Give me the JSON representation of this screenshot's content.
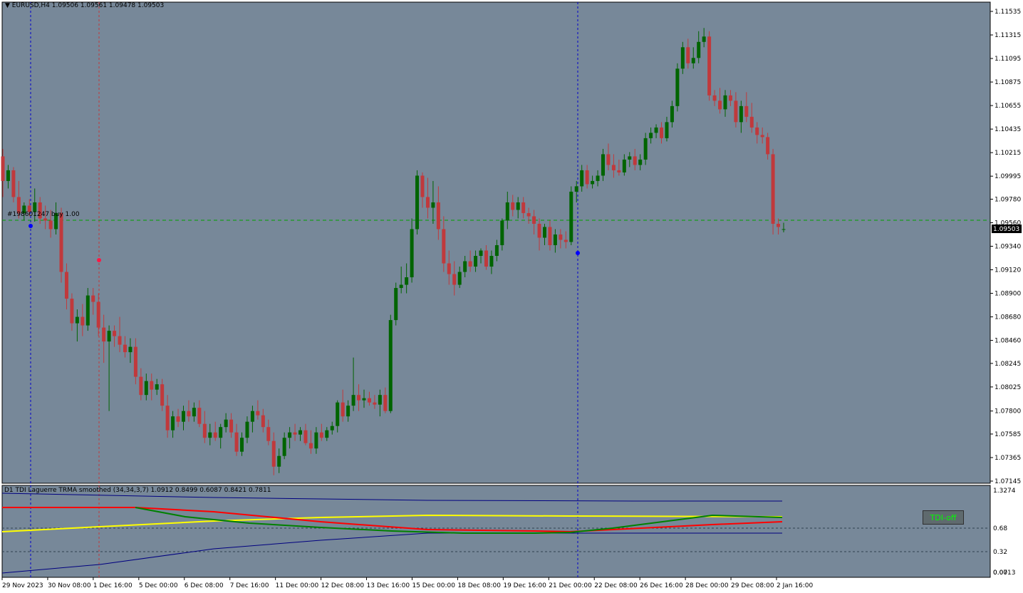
{
  "symbol_info": {
    "arrow": "▼",
    "text": "EURUSD,H4  1.09506 1.09561 1.09478 1.09503"
  },
  "order": {
    "label": "#198601247 buy 1.00"
  },
  "indicator": {
    "label": "D1 TDI Laguerre TRMA smoothed (34,34,3,7) 1.0912 0.8499 0.6087 0.8421 0.7811",
    "button_label": "TDI-off"
  },
  "price_axis": {
    "ticks": [
      "1.11535",
      "1.11315",
      "1.11095",
      "1.10875",
      "1.10655",
      "1.10435",
      "1.10215",
      "1.09995",
      "1.09780",
      "1.09560",
      "1.09340",
      "1.09120",
      "1.08900",
      "1.08680",
      "1.08460",
      "1.08245",
      "1.08025",
      "1.07800",
      "1.07585",
      "1.07365",
      "1.07145"
    ],
    "current_price": "1.09503"
  },
  "indicator_axis": {
    "ticks": [
      "1.3274",
      "0.68",
      "0.32",
      "0.0713",
      "0.00"
    ]
  },
  "time_axis": {
    "ticks": [
      "29 Nov 2023",
      "30 Nov 08:00",
      "1 Dec 16:00",
      "5 Dec 00:00",
      "6 Dec 08:00",
      "7 Dec 16:00",
      "11 Dec 00:00",
      "12 Dec 08:00",
      "13 Dec 16:00",
      "15 Dec 00:00",
      "18 Dec 08:00",
      "19 Dec 16:00",
      "21 Dec 00:00",
      "22 Dec 08:00",
      "26 Dec 16:00",
      "28 Dec 00:00",
      "29 Dec 08:00",
      "2 Jan 16:00"
    ]
  },
  "colors": {
    "background": "#778899",
    "bull": "#006400",
    "bear": "#c0393c",
    "indicator_yellow": "#ffff00",
    "indicator_red": "#ff0000",
    "indicator_green": "#008000",
    "indicator_blue": "#000080"
  },
  "chart_data": {
    "type": "candlestick",
    "timeframe": "H4",
    "ylim": [
      1.07145,
      1.11535
    ],
    "candles": [
      [
        1.1018,
        1.1025,
        1.098,
        1.0995
      ],
      [
        1.0995,
        1.101,
        1.0988,
        1.1005
      ],
      [
        1.1005,
        1.1008,
        1.0975,
        1.098
      ],
      [
        1.098,
        1.0995,
        1.096,
        1.0965
      ],
      [
        1.0965,
        1.0975,
        1.0958,
        1.0972
      ],
      [
        1.0972,
        1.0978,
        1.0962,
        1.0966
      ],
      [
        1.0966,
        1.0988,
        1.0957,
        1.0975
      ],
      [
        1.0975,
        1.098,
        1.0955,
        1.096
      ],
      [
        1.096,
        1.0972,
        1.095,
        1.0958
      ],
      [
        1.0958,
        1.0968,
        1.0942,
        1.095
      ],
      [
        1.095,
        1.0975,
        1.0945,
        1.0965
      ],
      [
        1.0965,
        1.097,
        1.09,
        1.091
      ],
      [
        1.091,
        1.0918,
        1.0875,
        1.0885
      ],
      [
        1.0885,
        1.089,
        1.0855,
        1.0862
      ],
      [
        1.0862,
        1.0875,
        1.0845,
        1.0868
      ],
      [
        1.0868,
        1.088,
        1.085,
        1.086
      ],
      [
        1.086,
        1.0895,
        1.0855,
        1.0888
      ],
      [
        1.0888,
        1.0895,
        1.087,
        1.0882
      ],
      [
        1.0882,
        1.089,
        1.085,
        1.0858
      ],
      [
        1.0858,
        1.087,
        1.0825,
        1.0845
      ],
      [
        1.0845,
        1.086,
        1.078,
        1.0855
      ],
      [
        1.0855,
        1.086,
        1.084,
        1.085
      ],
      [
        1.085,
        1.0868,
        1.0835,
        1.0842
      ],
      [
        1.0842,
        1.085,
        1.083,
        1.0835
      ],
      [
        1.0835,
        1.0848,
        1.0825,
        1.084
      ],
      [
        1.084,
        1.0848,
        1.0805,
        1.0812
      ],
      [
        1.0812,
        1.082,
        1.079,
        1.0795
      ],
      [
        1.0795,
        1.0815,
        1.079,
        1.0808
      ],
      [
        1.0808,
        1.0815,
        1.079,
        1.08
      ],
      [
        1.08,
        1.081,
        1.0795,
        1.0805
      ],
      [
        1.0805,
        1.081,
        1.078,
        1.0785
      ],
      [
        1.0785,
        1.0795,
        1.0755,
        1.0762
      ],
      [
        1.0762,
        1.078,
        1.0755,
        1.0775
      ],
      [
        1.0775,
        1.0782,
        1.0765,
        1.077
      ],
      [
        1.077,
        1.0785,
        1.0762,
        1.078
      ],
      [
        1.078,
        1.079,
        1.077,
        1.0775
      ],
      [
        1.0775,
        1.0788,
        1.077,
        1.0783
      ],
      [
        1.0783,
        1.079,
        1.0765,
        1.0768
      ],
      [
        1.0768,
        1.078,
        1.075,
        1.0755
      ],
      [
        1.0755,
        1.0768,
        1.0748,
        1.076
      ],
      [
        1.076,
        1.077,
        1.0752,
        1.0755
      ],
      [
        1.0755,
        1.0768,
        1.0745,
        1.0765
      ],
      [
        1.0765,
        1.0778,
        1.076,
        1.0772
      ],
      [
        1.0772,
        1.0778,
        1.0755,
        1.076
      ],
      [
        1.076,
        1.0768,
        1.0738,
        1.0742
      ],
      [
        1.0742,
        1.076,
        1.0738,
        1.0755
      ],
      [
        1.0755,
        1.0775,
        1.075,
        1.077
      ],
      [
        1.077,
        1.0785,
        1.076,
        1.078
      ],
      [
        1.078,
        1.079,
        1.0772,
        1.0776
      ],
      [
        1.0776,
        1.0782,
        1.076,
        1.0765
      ],
      [
        1.0765,
        1.0772,
        1.0748,
        1.0752
      ],
      [
        1.0752,
        1.076,
        1.072,
        1.0728
      ],
      [
        1.0728,
        1.0745,
        1.0722,
        1.0738
      ],
      [
        1.0738,
        1.076,
        1.0735,
        1.0755
      ],
      [
        1.0755,
        1.0765,
        1.0745,
        1.076
      ],
      [
        1.076,
        1.0768,
        1.0752,
        1.0758
      ],
      [
        1.0758,
        1.0765,
        1.0752,
        1.0762
      ],
      [
        1.0762,
        1.0768,
        1.0748,
        1.075
      ],
      [
        1.075,
        1.0762,
        1.074,
        1.0745
      ],
      [
        1.0745,
        1.0765,
        1.074,
        1.076
      ],
      [
        1.076,
        1.0768,
        1.0752,
        1.0755
      ],
      [
        1.0755,
        1.0765,
        1.0752,
        1.0762
      ],
      [
        1.0762,
        1.077,
        1.0758,
        1.0766
      ],
      [
        1.0766,
        1.079,
        1.076,
        1.0788
      ],
      [
        1.0788,
        1.08,
        1.077,
        1.0775
      ],
      [
        1.0775,
        1.079,
        1.077,
        1.0785
      ],
      [
        1.0785,
        1.083,
        1.078,
        1.0795
      ],
      [
        1.0795,
        1.0805,
        1.078,
        1.079
      ],
      [
        1.079,
        1.08,
        1.0783,
        1.0792
      ],
      [
        1.0792,
        1.0798,
        1.0785,
        1.0788
      ],
      [
        1.0788,
        1.0795,
        1.0782,
        1.0786
      ],
      [
        1.0786,
        1.08,
        1.0775,
        1.0795
      ],
      [
        1.0795,
        1.0802,
        1.0778,
        1.078
      ],
      [
        1.078,
        1.087,
        1.0778,
        1.0865
      ],
      [
        1.0865,
        1.09,
        1.086,
        1.0895
      ],
      [
        1.0895,
        1.0915,
        1.089,
        1.0898
      ],
      [
        1.0898,
        1.0918,
        1.089,
        1.0905
      ],
      [
        1.0905,
        1.096,
        1.09,
        1.095
      ],
      [
        1.095,
        1.1005,
        1.0945,
        1.1
      ],
      [
        1.1,
        1.1003,
        1.097,
        1.098
      ],
      [
        1.098,
        1.0998,
        1.096,
        1.097
      ],
      [
        1.097,
        1.0995,
        1.0955,
        1.0975
      ],
      [
        1.0975,
        1.099,
        1.094,
        1.095
      ],
      [
        1.095,
        1.0962,
        1.091,
        1.0918
      ],
      [
        1.0918,
        1.093,
        1.0898,
        1.0908
      ],
      [
        1.0908,
        1.092,
        1.0888,
        1.0898
      ],
      [
        1.0898,
        1.0915,
        1.0895,
        1.091
      ],
      [
        1.091,
        1.0925,
        1.0905,
        1.092
      ],
      [
        1.092,
        1.093,
        1.091,
        1.0915
      ],
      [
        1.0915,
        1.093,
        1.091,
        1.0925
      ],
      [
        1.0925,
        1.0932,
        1.0918,
        1.093
      ],
      [
        1.093,
        1.0935,
        1.0912,
        1.0915
      ],
      [
        1.0915,
        1.093,
        1.0908,
        1.0925
      ],
      [
        1.0925,
        1.094,
        1.092,
        1.0935
      ],
      [
        1.0935,
        1.096,
        1.093,
        1.0958
      ],
      [
        1.0958,
        1.0985,
        1.095,
        1.0975
      ],
      [
        1.0975,
        1.0982,
        1.0962,
        1.0968
      ],
      [
        1.0968,
        1.098,
        1.096,
        1.0975
      ],
      [
        1.0975,
        1.098,
        1.096,
        1.0965
      ],
      [
        1.0965,
        1.097,
        1.0955,
        1.0962
      ],
      [
        1.0962,
        1.0968,
        1.0945,
        1.0955
      ],
      [
        1.0955,
        1.096,
        1.093,
        1.0942
      ],
      [
        1.0942,
        1.0955,
        1.0935,
        1.0952
      ],
      [
        1.0952,
        1.0958,
        1.093,
        1.0935
      ],
      [
        1.0935,
        1.095,
        1.0928,
        1.0945
      ],
      [
        1.0945,
        1.095,
        1.0932,
        1.094
      ],
      [
        1.094,
        1.0948,
        1.0932,
        1.0938
      ],
      [
        1.0938,
        1.099,
        1.0935,
        1.0985
      ],
      [
        1.0985,
        1.0995,
        1.0975,
        1.099
      ],
      [
        1.099,
        1.101,
        1.0985,
        1.1005
      ],
      [
        1.1005,
        1.101,
        1.0988,
        1.0992
      ],
      [
        1.0992,
        1.1,
        1.0988,
        1.0995
      ],
      [
        1.0995,
        1.1005,
        1.099,
        1.1
      ],
      [
        1.1,
        1.1025,
        1.0995,
        1.102
      ],
      [
        1.102,
        1.103,
        1.1005,
        1.101
      ],
      [
        1.101,
        1.102,
        1.0998,
        1.1005
      ],
      [
        1.1005,
        1.1015,
        1.1,
        1.1003
      ],
      [
        1.1003,
        1.102,
        1.1,
        1.1015
      ],
      [
        1.1015,
        1.1022,
        1.1008,
        1.1018
      ],
      [
        1.1018,
        1.1025,
        1.1005,
        1.101
      ],
      [
        1.101,
        1.102,
        1.1005,
        1.1015
      ],
      [
        1.1015,
        1.104,
        1.101,
        1.1035
      ],
      [
        1.1035,
        1.1045,
        1.103,
        1.104
      ],
      [
        1.104,
        1.1048,
        1.1035,
        1.1045
      ],
      [
        1.1045,
        1.105,
        1.103,
        1.1035
      ],
      [
        1.1035,
        1.1055,
        1.1032,
        1.105
      ],
      [
        1.105,
        1.107,
        1.1045,
        1.1065
      ],
      [
        1.1065,
        1.1105,
        1.106,
        1.11
      ],
      [
        1.11,
        1.1125,
        1.1095,
        1.112
      ],
      [
        1.112,
        1.1128,
        1.11,
        1.1105
      ],
      [
        1.1105,
        1.112,
        1.11,
        1.111
      ],
      [
        1.111,
        1.1135,
        1.1105,
        1.1125
      ],
      [
        1.1125,
        1.1138,
        1.112,
        1.113
      ],
      [
        1.113,
        1.1135,
        1.107,
        1.1075
      ],
      [
        1.1075,
        1.108,
        1.1065,
        1.107
      ],
      [
        1.107,
        1.1082,
        1.1058,
        1.1062
      ],
      [
        1.1062,
        1.108,
        1.1055,
        1.1075
      ],
      [
        1.1075,
        1.108,
        1.1065,
        1.107
      ],
      [
        1.107,
        1.1078,
        1.1045,
        1.105
      ],
      [
        1.105,
        1.107,
        1.104,
        1.1065
      ],
      [
        1.1065,
        1.1078,
        1.105,
        1.1055
      ],
      [
        1.1055,
        1.1068,
        1.104,
        1.1045
      ],
      [
        1.1045,
        1.105,
        1.103,
        1.1038
      ],
      [
        1.1038,
        1.1045,
        1.103,
        1.1036
      ],
      [
        1.1036,
        1.104,
        1.1015,
        1.102
      ],
      [
        1.102,
        1.1025,
        1.0945,
        1.0955
      ],
      [
        1.0955,
        1.096,
        1.0945,
        1.0952
      ],
      [
        1.095,
        1.0956,
        1.0947,
        1.095
      ]
    ]
  }
}
